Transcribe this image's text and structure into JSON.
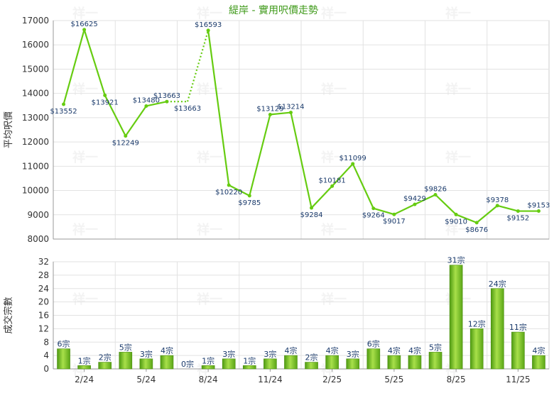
{
  "chart_data": [
    {
      "type": "line",
      "title": "緹岸 - 實用呎價走勢",
      "ylabel": "平均呎價",
      "ylim": [
        8000,
        17000
      ],
      "yticks": [
        8000,
        9000,
        10000,
        11000,
        12000,
        13000,
        14000,
        15000,
        16000,
        17000
      ],
      "xtick_labels": [
        "2/24",
        "5/24",
        "8/24",
        "11/24",
        "2/25",
        "5/25",
        "8/25",
        "11/25"
      ],
      "grid": true,
      "line_color": "#66cc11",
      "series": [
        {
          "values": [
            13552,
            16625,
            13921,
            12249,
            13480,
            13663,
            13663,
            16593,
            10220,
            9785,
            13129,
            13214,
            9284,
            10181,
            11099,
            9264,
            9017,
            9429,
            9826,
            9010,
            8676,
            9378,
            9152,
            9153
          ],
          "labels": [
            "$13552",
            "$16625",
            "$13921",
            "$12249",
            "$13480",
            "$13663",
            "$13663",
            "$16593",
            "$10220",
            "$9785",
            "$13129",
            "$13214",
            "$9284",
            "$10181",
            "$11099",
            "$9264",
            "$9017",
            "$9429",
            "$9826",
            "$9010",
            "$8676",
            "$9378",
            "$9152",
            "$9153"
          ],
          "missing_month_index": 6
        }
      ]
    },
    {
      "type": "bar",
      "ylabel": "成交宗數",
      "ylim": [
        0,
        32
      ],
      "yticks": [
        0,
        4,
        8,
        12,
        16,
        20,
        24,
        28,
        32
      ],
      "xtick_labels": [
        "2/24",
        "5/24",
        "8/24",
        "11/24",
        "2/25",
        "5/25",
        "8/25",
        "11/25"
      ],
      "grid": true,
      "bar_color": "#7cc41f",
      "values": [
        6,
        1,
        2,
        5,
        3,
        4,
        0,
        1,
        3,
        1,
        3,
        4,
        2,
        4,
        3,
        6,
        4,
        4,
        5,
        31,
        12,
        24,
        11,
        4
      ],
      "labels": [
        "6宗",
        "1宗",
        "2宗",
        "5宗",
        "3宗",
        "4宗",
        "0宗",
        "1宗",
        "3宗",
        "1宗",
        "3宗",
        "4宗",
        "2宗",
        "4宗",
        "3宗",
        "6宗",
        "4宗",
        "4宗",
        "5宗",
        "31宗",
        "12宗",
        "24宗",
        "11宗",
        "4宗"
      ]
    }
  ],
  "watermark": "祥一"
}
